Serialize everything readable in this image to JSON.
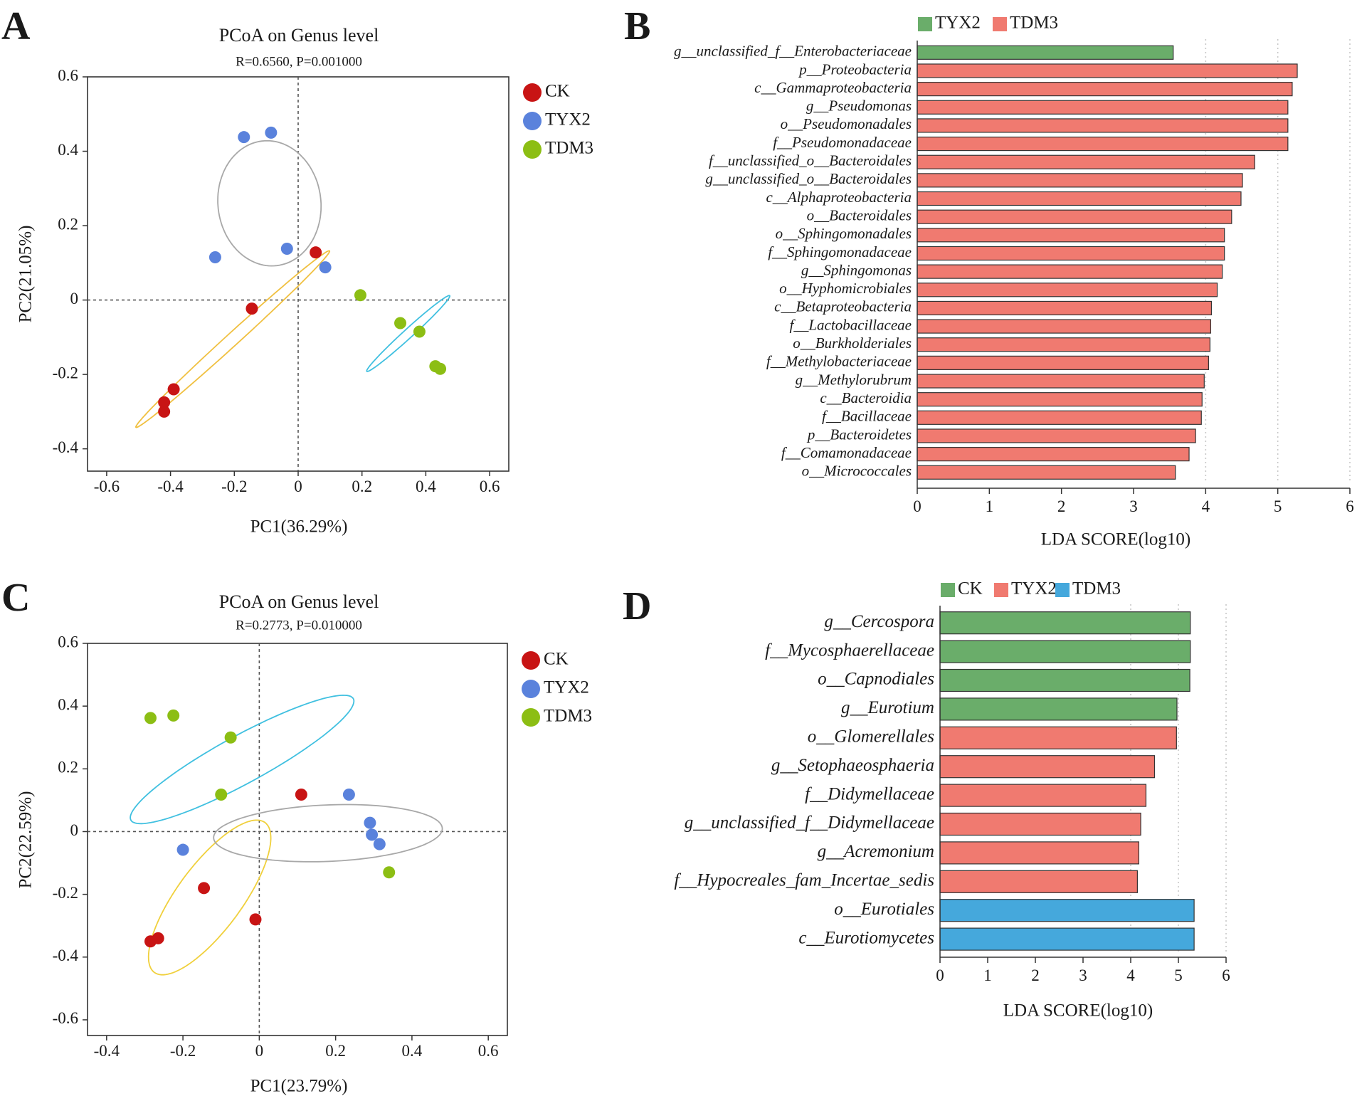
{
  "chart_data": [
    {
      "panel": "A",
      "type": "scatter",
      "title": "PCoA on Genus level",
      "subtitle": "R=0.6560, P=0.001000",
      "xlabel": "PC1(36.29%)",
      "ylabel": "PC2(21.05%)",
      "xlim": [
        -0.66,
        0.66
      ],
      "ylim": [
        -0.46,
        0.6
      ],
      "xticks": [
        -0.6,
        -0.4,
        -0.2,
        0,
        0.2,
        0.4,
        0.6
      ],
      "xtick_labels": [
        "-0.6",
        "-0.4",
        "-0.2",
        "0",
        "0.2",
        "0.4",
        "0.6"
      ],
      "yticks": [
        0.6,
        0.4,
        0.2,
        0,
        -0.2,
        -0.4
      ],
      "ytick_labels": [
        "0.6",
        "0.4",
        "0.2",
        "0",
        "-0.2",
        "-0.4"
      ],
      "series": [
        {
          "name": "CK",
          "color": "#c81414",
          "points": [
            [
              0.055,
              0.128
            ],
            [
              -0.145,
              -0.023
            ],
            [
              -0.39,
              -0.24
            ],
            [
              -0.42,
              -0.275
            ],
            [
              -0.42,
              -0.3
            ]
          ],
          "ellipse": {
            "cx": -0.205,
            "cy": -0.105,
            "rx": 0.385,
            "ry": 0.018,
            "angle_deg": 38,
            "color": "#f0c040"
          }
        },
        {
          "name": "TYX2",
          "color": "#5a82dc",
          "points": [
            [
              -0.17,
              0.438
            ],
            [
              -0.085,
              0.45
            ],
            [
              -0.26,
              0.115
            ],
            [
              -0.035,
              0.138
            ],
            [
              0.085,
              0.088
            ]
          ],
          "ellipse": {
            "cx": -0.09,
            "cy": 0.26,
            "rx": 0.16,
            "ry": 0.17,
            "angle_deg": 25,
            "color": "#a8a8a8"
          }
        },
        {
          "name": "TDM3",
          "color": "#8cbe14",
          "points": [
            [
              0.195,
              0.013
            ],
            [
              0.32,
              -0.062
            ],
            [
              0.38,
              -0.085
            ],
            [
              0.43,
              -0.178
            ],
            [
              0.445,
              -0.185
            ]
          ],
          "ellipse": {
            "cx": 0.345,
            "cy": -0.09,
            "rx": 0.165,
            "ry": 0.013,
            "angle_deg": 38,
            "color": "#40c0e0"
          }
        }
      ],
      "legend": [
        "CK",
        "TYX2",
        "TDM3"
      ]
    },
    {
      "panel": "B",
      "type": "bar",
      "orientation": "horizontal",
      "xlabel": "LDA SCORE(log10)",
      "xlim": [
        0,
        6
      ],
      "xticks": [
        0,
        1,
        2,
        3,
        4,
        5,
        6
      ],
      "xtick_labels": [
        "0",
        "1",
        "2",
        "3",
        "4",
        "5",
        "6"
      ],
      "legend": [
        {
          "name": "TYX2",
          "color": "#6aad6a"
        },
        {
          "name": "TDM3",
          "color": "#f07a70"
        }
      ],
      "bars": [
        {
          "label": "g__unclassified_f__Enterobacteriaceae",
          "value": 3.55,
          "group": "TYX2",
          "color": "#6aad6a"
        },
        {
          "label": "p__Proteobacteria",
          "value": 5.27,
          "group": "TDM3",
          "color": "#f07a70"
        },
        {
          "label": "c__Gammaproteobacteria",
          "value": 5.2,
          "group": "TDM3",
          "color": "#f07a70"
        },
        {
          "label": "g__Pseudomonas",
          "value": 5.14,
          "group": "TDM3",
          "color": "#f07a70"
        },
        {
          "label": "o__Pseudomonadales",
          "value": 5.14,
          "group": "TDM3",
          "color": "#f07a70"
        },
        {
          "label": "f__Pseudomonadaceae",
          "value": 5.14,
          "group": "TDM3",
          "color": "#f07a70"
        },
        {
          "label": "f__unclassified_o__Bacteroidales",
          "value": 4.68,
          "group": "TDM3",
          "color": "#f07a70"
        },
        {
          "label": "g__unclassified_o__Bacteroidales",
          "value": 4.51,
          "group": "TDM3",
          "color": "#f07a70"
        },
        {
          "label": "c__Alphaproteobacteria",
          "value": 4.49,
          "group": "TDM3",
          "color": "#f07a70"
        },
        {
          "label": "o__Bacteroidales",
          "value": 4.36,
          "group": "TDM3",
          "color": "#f07a70"
        },
        {
          "label": "o__Sphingomonadales",
          "value": 4.26,
          "group": "TDM3",
          "color": "#f07a70"
        },
        {
          "label": "f__Sphingomonadaceae",
          "value": 4.26,
          "group": "TDM3",
          "color": "#f07a70"
        },
        {
          "label": "g__Sphingomonas",
          "value": 4.23,
          "group": "TDM3",
          "color": "#f07a70"
        },
        {
          "label": "o__Hyphomicrobiales",
          "value": 4.16,
          "group": "TDM3",
          "color": "#f07a70"
        },
        {
          "label": "c__Betaproteobacteria",
          "value": 4.08,
          "group": "TDM3",
          "color": "#f07a70"
        },
        {
          "label": "f__Lactobacillaceae",
          "value": 4.07,
          "group": "TDM3",
          "color": "#f07a70"
        },
        {
          "label": "o__Burkholderiales",
          "value": 4.06,
          "group": "TDM3",
          "color": "#f07a70"
        },
        {
          "label": "f__Methylobacteriaceae",
          "value": 4.04,
          "group": "TDM3",
          "color": "#f07a70"
        },
        {
          "label": "g__Methylorubrum",
          "value": 3.98,
          "group": "TDM3",
          "color": "#f07a70"
        },
        {
          "label": "c__Bacteroidia",
          "value": 3.95,
          "group": "TDM3",
          "color": "#f07a70"
        },
        {
          "label": "f__Bacillaceae",
          "value": 3.94,
          "group": "TDM3",
          "color": "#f07a70"
        },
        {
          "label": "p__Bacteroidetes",
          "value": 3.86,
          "group": "TDM3",
          "color": "#f07a70"
        },
        {
          "label": "f__Comamonadaceae",
          "value": 3.77,
          "group": "TDM3",
          "color": "#f07a70"
        },
        {
          "label": "o__Micrococcales",
          "value": 3.58,
          "group": "TDM3",
          "color": "#f07a70"
        }
      ]
    },
    {
      "panel": "C",
      "type": "scatter",
      "title": "PCoA on Genus level",
      "subtitle": "R=0.2773, P=0.010000",
      "xlabel": "PC1(23.79%)",
      "ylabel": "PC2(22.59%)",
      "xlim": [
        -0.45,
        0.65
      ],
      "ylim": [
        -0.65,
        0.6
      ],
      "xticks": [
        -0.4,
        -0.2,
        0,
        0.2,
        0.4,
        0.6
      ],
      "xtick_labels": [
        "-0.4",
        "-0.2",
        "0",
        "0.2",
        "0.4",
        "0.6"
      ],
      "yticks": [
        0.6,
        0.4,
        0.2,
        0,
        -0.2,
        -0.4,
        -0.6
      ],
      "ytick_labels": [
        "0.6",
        "0.4",
        "0.2",
        "0",
        "-0.2",
        "-0.4",
        "-0.6"
      ],
      "series": [
        {
          "name": "CK",
          "color": "#c81414",
          "points": [
            [
              0.11,
              0.118
            ],
            [
              -0.145,
              -0.18
            ],
            [
              -0.01,
              -0.28
            ],
            [
              -0.265,
              -0.34
            ],
            [
              -0.285,
              -0.35
            ]
          ],
          "ellipse": {
            "cx": -0.13,
            "cy": -0.21,
            "rx": 0.28,
            "ry": 0.09,
            "angle_deg": 60,
            "color": "#f0d03c"
          }
        },
        {
          "name": "TYX2",
          "color": "#5a82dc",
          "points": [
            [
              0.235,
              0.118
            ],
            [
              0.29,
              0.028
            ],
            [
              0.295,
              -0.01
            ],
            [
              0.315,
              -0.04
            ],
            [
              -0.2,
              -0.058
            ]
          ],
          "ellipse": {
            "cx": 0.18,
            "cy": -0.005,
            "rx": 0.3,
            "ry": 0.09,
            "angle_deg": 3,
            "color": "#a8a8a8"
          }
        },
        {
          "name": "TDM3",
          "color": "#8cbe14",
          "points": [
            [
              -0.285,
              0.362
            ],
            [
              -0.225,
              0.37
            ],
            [
              -0.075,
              0.3
            ],
            [
              -0.1,
              0.118
            ],
            [
              0.34,
              -0.13
            ]
          ],
          "ellipse": {
            "cx": -0.045,
            "cy": 0.23,
            "rx": 0.35,
            "ry": 0.072,
            "angle_deg": 34,
            "color": "#40c0e0"
          }
        }
      ],
      "legend": [
        "CK",
        "TYX2",
        "TDM3"
      ]
    },
    {
      "panel": "D",
      "type": "bar",
      "orientation": "horizontal",
      "xlabel": "LDA SCORE(log10)",
      "xlim": [
        0,
        6
      ],
      "xticks": [
        0,
        1,
        2,
        3,
        4,
        5,
        6
      ],
      "xtick_labels": [
        "0",
        "1",
        "2",
        "3",
        "4",
        "5",
        "6"
      ],
      "legend": [
        {
          "name": "CK",
          "color": "#6aad6a"
        },
        {
          "name": "TYX2",
          "color": "#f07a70"
        },
        {
          "name": "TDM3",
          "color": "#45a8dc"
        }
      ],
      "bars": [
        {
          "label": "g__Cercospora",
          "value": 5.25,
          "group": "CK",
          "color": "#6aad6a"
        },
        {
          "label": "f__Mycosphaerellaceae",
          "value": 5.25,
          "group": "CK",
          "color": "#6aad6a"
        },
        {
          "label": "o__Capnodiales",
          "value": 5.24,
          "group": "CK",
          "color": "#6aad6a"
        },
        {
          "label": "g__Eurotium",
          "value": 4.97,
          "group": "CK",
          "color": "#6aad6a"
        },
        {
          "label": "o__Glomerellales",
          "value": 4.96,
          "group": "TYX2",
          "color": "#f07a70"
        },
        {
          "label": "g__Setophaeosphaeria",
          "value": 4.5,
          "group": "TYX2",
          "color": "#f07a70"
        },
        {
          "label": "f__Didymellaceae",
          "value": 4.32,
          "group": "TYX2",
          "color": "#f07a70"
        },
        {
          "label": "g__unclassified_f__Didymellaceae",
          "value": 4.21,
          "group": "TYX2",
          "color": "#f07a70"
        },
        {
          "label": "g__Acremonium",
          "value": 4.17,
          "group": "TYX2",
          "color": "#f07a70"
        },
        {
          "label": "f__Hypocreales_fam_Incertae_sedis",
          "value": 4.14,
          "group": "TYX2",
          "color": "#f07a70"
        },
        {
          "label": "o__Eurotiales",
          "value": 5.33,
          "group": "TDM3",
          "color": "#45a8dc"
        },
        {
          "label": "c__Eurotiomycetes",
          "value": 5.33,
          "group": "TDM3",
          "color": "#45a8dc"
        }
      ]
    }
  ],
  "panel_letters": [
    "A",
    "B",
    "C",
    "D"
  ]
}
